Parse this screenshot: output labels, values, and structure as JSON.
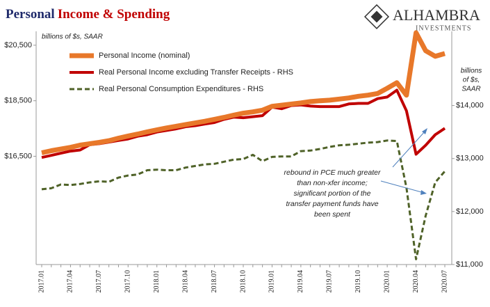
{
  "chart_data": {
    "type": "line",
    "title": [
      "Personal",
      "Income & Spending"
    ],
    "logo": {
      "name": "ALHAMBRA",
      "tagline": "INVESTMENTS"
    },
    "y_label": "billions of $s, SAAR",
    "y2_label": [
      "billions",
      "of $s,",
      "SAAR"
    ],
    "annotation": [
      "rebound in PCE much greater",
      "than non-xfer income;",
      "significant portion of the",
      "transfer payment funds have",
      "been spent"
    ],
    "categories": [
      "2017.01",
      null,
      null,
      "2017.04",
      null,
      null,
      "2017.07",
      null,
      null,
      "2017.10",
      null,
      null,
      "2018.01",
      null,
      null,
      "2018.04",
      null,
      null,
      "2018.07",
      null,
      null,
      "2018.10",
      null,
      null,
      "2019.01",
      null,
      null,
      "2019.04",
      null,
      null,
      "2019.07",
      null,
      null,
      "2019.10",
      null,
      null,
      "2020.01",
      null,
      null,
      "2020.04",
      null,
      null,
      "2020.07"
    ],
    "ylim": [
      12600,
      21000
    ],
    "yticks": [
      {
        "value": 16500,
        "label": "$16,500"
      },
      {
        "value": 18500,
        "label": "$18,500"
      },
      {
        "value": 20500,
        "label": "$20,500"
      }
    ],
    "y2lim": [
      11000,
      15400
    ],
    "y2ticks": [
      {
        "value": 11000,
        "label": "$11,000"
      },
      {
        "value": 12000,
        "label": "$12,000"
      },
      {
        "value": 13000,
        "label": "$13,000"
      },
      {
        "value": 14000,
        "label": "$14,000"
      }
    ],
    "series": [
      {
        "name": "Personal Income (nominal)",
        "color": "#e8782a",
        "style": "solid",
        "width": 7,
        "values": [
          16625,
          16700,
          16760,
          16820,
          16900,
          16950,
          17000,
          17060,
          17150,
          17230,
          17300,
          17380,
          17450,
          17520,
          17580,
          17640,
          17700,
          17760,
          17830,
          17900,
          17980,
          18050,
          18100,
          18160,
          18300,
          18340,
          18380,
          18420,
          18470,
          18500,
          18520,
          18560,
          18600,
          18660,
          18700,
          18760,
          18950,
          19150,
          18700,
          20950,
          20300,
          20100,
          20200
        ]
      },
      {
        "name": "Real Personal Income excluding Transfer Receipts - RHS",
        "color": "#c00000",
        "style": "solid",
        "width": 4,
        "axis": "y2",
        "values": [
          13020,
          13060,
          13100,
          13140,
          13160,
          13260,
          13280,
          13310,
          13340,
          13370,
          13420,
          13450,
          13500,
          13530,
          13560,
          13600,
          13620,
          13650,
          13680,
          13740,
          13780,
          13770,
          13790,
          13810,
          13970,
          13940,
          14000,
          14010,
          13990,
          13980,
          13980,
          13980,
          14030,
          14040,
          14040,
          14130,
          14160,
          14290,
          13900,
          13080,
          13250,
          13450,
          13570
        ]
      },
      {
        "name": "Real Personal Consumption Expenditures - RHS",
        "color": "#4f6228",
        "style": "dashed",
        "width": 3,
        "axis": "y2",
        "values": [
          12420,
          12440,
          12510,
          12500,
          12520,
          12550,
          12570,
          12560,
          12640,
          12680,
          12700,
          12780,
          12790,
          12780,
          12780,
          12830,
          12860,
          12890,
          12900,
          12940,
          12980,
          12990,
          13070,
          12950,
          13030,
          13040,
          13040,
          13140,
          13150,
          13180,
          13220,
          13250,
          13260,
          13280,
          13300,
          13310,
          13340,
          13330,
          12450,
          11100,
          11920,
          12550,
          12760
        ]
      }
    ]
  }
}
